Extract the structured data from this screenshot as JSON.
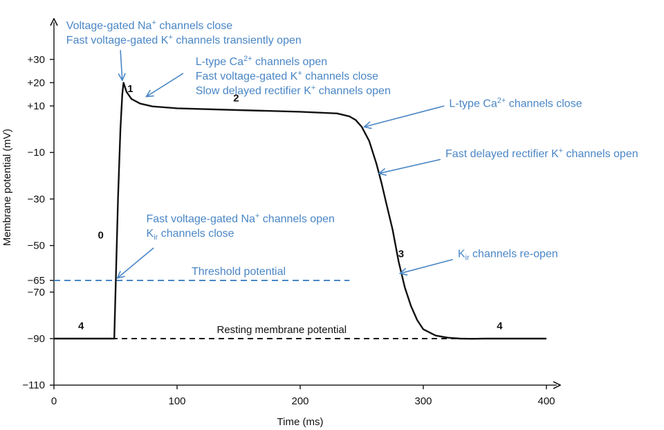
{
  "chart_data": {
    "type": "line",
    "title": "",
    "xlabel": "Time (ms)",
    "ylabel": "Membrane potential (mV)",
    "xlim": [
      0,
      410
    ],
    "ylim": [
      -110,
      45
    ],
    "x_ticks": [
      {
        "value": 0,
        "label": "0"
      },
      {
        "value": 100,
        "label": "100"
      },
      {
        "value": 200,
        "label": "200"
      },
      {
        "value": 300,
        "label": "300"
      },
      {
        "value": 400,
        "label": "400"
      }
    ],
    "y_ticks": [
      {
        "value": 30,
        "label": "+30"
      },
      {
        "value": 20,
        "label": "+20"
      },
      {
        "value": 10,
        "label": "+10"
      },
      {
        "value": -10,
        "label": "−10"
      },
      {
        "value": -30,
        "label": "−30"
      },
      {
        "value": -50,
        "label": "−50"
      },
      {
        "value": -65,
        "label": "−65"
      },
      {
        "value": -70,
        "label": "−70"
      },
      {
        "value": -90,
        "label": "−90"
      },
      {
        "value": -110,
        "label": "−110"
      }
    ],
    "series": [
      {
        "name": "",
        "color": "#111111",
        "points": [
          [
            0,
            -90
          ],
          [
            49,
            -90
          ],
          [
            52,
            -30
          ],
          [
            54,
            0
          ],
          [
            55.5,
            15
          ],
          [
            56.5,
            20
          ],
          [
            59,
            16
          ],
          [
            63,
            13
          ],
          [
            70,
            11
          ],
          [
            80,
            9.8
          ],
          [
            100,
            9
          ],
          [
            150,
            8.2
          ],
          [
            200,
            7.5
          ],
          [
            230,
            6.8
          ],
          [
            240,
            5.5
          ],
          [
            245,
            4
          ],
          [
            250,
            1
          ],
          [
            256,
            -5
          ],
          [
            262,
            -15
          ],
          [
            266,
            -23
          ],
          [
            270,
            -32
          ],
          [
            275,
            -43
          ],
          [
            280,
            -57
          ],
          [
            285,
            -68
          ],
          [
            290,
            -76
          ],
          [
            295,
            -82
          ],
          [
            300,
            -86
          ],
          [
            310,
            -88.7
          ],
          [
            320,
            -89.6
          ],
          [
            330,
            -90
          ],
          [
            340,
            -90.1
          ],
          [
            350,
            -90
          ],
          [
            380,
            -90
          ],
          [
            400,
            -90
          ]
        ]
      }
    ],
    "reference_lines": [
      {
        "label": "Threshold potential",
        "y": -65,
        "x_start": 0,
        "x_end": 240,
        "color": "#4a86c5",
        "style": "dashed"
      },
      {
        "label": "Resting membrane potential",
        "y": -90,
        "x_start": 0,
        "x_end": 400,
        "color": "#111111",
        "style": "dashed"
      }
    ],
    "phase_labels": [
      {
        "label": "0",
        "x": 38,
        "y": -47
      },
      {
        "label": "1",
        "x": 62,
        "y": 16
      },
      {
        "label": "2",
        "x": 148,
        "y": 12
      },
      {
        "label": "3",
        "x": 282,
        "y": -55
      },
      {
        "label": "4",
        "x": 22,
        "y": -86
      },
      {
        "label": "4",
        "x": 362,
        "y": -86
      }
    ],
    "annotations": [
      {
        "lines": [
          [
            {
              "t": "Voltage-gated Na"
            },
            {
              "t": "+",
              "s": "sup"
            },
            {
              "t": " channels close"
            }
          ],
          [
            {
              "t": "Fast voltage-gated K"
            },
            {
              "t": "+",
              "s": "sup"
            },
            {
              "t": " channels transiently open"
            }
          ]
        ],
        "text_x": 10,
        "text_y": 43,
        "target": [
          55.5,
          21
        ],
        "from": [
          54,
          34
        ]
      },
      {
        "lines": [
          [
            {
              "t": "L-type Ca"
            },
            {
              "t": "2+",
              "s": "sup"
            },
            {
              "t": " channels open"
            }
          ],
          [
            {
              "t": "Fast voltage-gated K"
            },
            {
              "t": "+",
              "s": "sup"
            },
            {
              "t": " channels close"
            }
          ],
          [
            {
              "t": "Slow delayed rectifier K"
            },
            {
              "t": "+",
              "s": "sup"
            },
            {
              "t": " channels open"
            }
          ]
        ],
        "text_x": 115,
        "text_y": 27.5,
        "target": [
          75,
          14
        ],
        "from": [
          105,
          24
        ]
      },
      {
        "lines": [
          [
            {
              "t": "L-type Ca"
            },
            {
              "t": "2+",
              "s": "sup"
            },
            {
              "t": " channels close"
            }
          ]
        ],
        "text_x": 321,
        "text_y": 9.5,
        "target": [
          252,
          1
        ],
        "from": [
          317,
          10
        ]
      },
      {
        "lines": [
          [
            {
              "t": "Fast delayed rectifier K"
            },
            {
              "t": "+",
              "s": "sup"
            },
            {
              "t": " channels open"
            }
          ],
          [
            {
              "t": "K"
            },
            {
              "t": "ir",
              "s": "sub"
            },
            {
              "t": " channels re-open"
            }
          ]
        ],
        "text_x": 318,
        "text_y": -12,
        "target": [
          264,
          -19
        ],
        "from": [
          314,
          -13
        ],
        "second": {
          "text_x": 328,
          "text_y": -55,
          "target": [
            281,
            -62
          ],
          "from": [
            324,
            -56
          ]
        }
      },
      {
        "lines": [
          [
            {
              "t": "Fast voltage-gated Na"
            },
            {
              "t": "+",
              "s": "sup"
            },
            {
              "t": " channels open"
            }
          ],
          [
            {
              "t": "K"
            },
            {
              "t": "ir",
              "s": "sub"
            },
            {
              "t": " channels close"
            }
          ]
        ],
        "text_x": 75,
        "text_y": -40,
        "target": [
          51.5,
          -64
        ],
        "from": [
          81,
          -51
        ]
      }
    ]
  }
}
